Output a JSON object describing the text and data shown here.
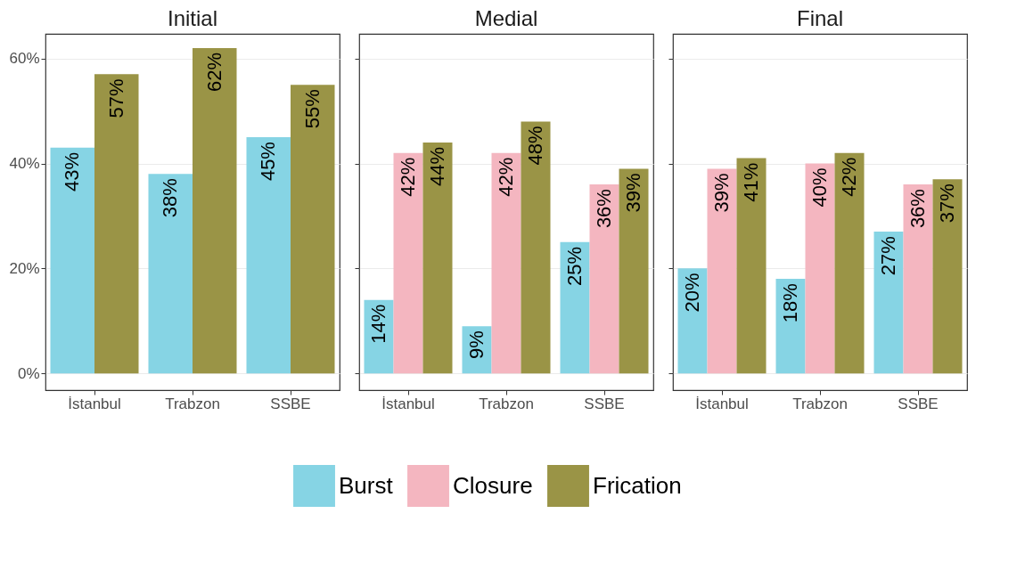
{
  "chart_data": [
    {
      "type": "bar",
      "title": "Initial",
      "categories": [
        "İstanbul",
        "Trabzon",
        "SSBE"
      ],
      "series": [
        {
          "name": "Burst",
          "color": "#86d4e4",
          "values": [
            43,
            38,
            45
          ],
          "value_labels": [
            "43%",
            "38%",
            "45%"
          ]
        },
        {
          "name": "Frication",
          "color": "#9a9446",
          "values": [
            57,
            62,
            55
          ],
          "value_labels": [
            "57%",
            "62%",
            "55%"
          ]
        }
      ],
      "ylim": [
        -3.2,
        64.7
      ],
      "yticks": [
        {
          "value": 0,
          "label": "0%"
        },
        {
          "value": 20,
          "label": "20%"
        },
        {
          "value": 40,
          "label": "40%"
        },
        {
          "value": 60,
          "label": "60%"
        }
      ],
      "grid": "y",
      "legend": "bottom"
    },
    {
      "type": "bar",
      "title": "Medial",
      "categories": [
        "İstanbul",
        "Trabzon",
        "SSBE"
      ],
      "series": [
        {
          "name": "Burst",
          "color": "#86d4e4",
          "values": [
            14,
            9,
            25
          ],
          "value_labels": [
            "14%",
            "9%",
            "25%"
          ]
        },
        {
          "name": "Closure",
          "color": "#f4b6c0",
          "values": [
            42,
            42,
            36
          ],
          "value_labels": [
            "42%",
            "42%",
            "36%"
          ]
        },
        {
          "name": "Frication",
          "color": "#9a9446",
          "values": [
            44,
            48,
            39
          ],
          "value_labels": [
            "44%",
            "48%",
            "39%"
          ]
        }
      ],
      "ylim": [
        -3.2,
        64.7
      ],
      "yticks": [
        {
          "value": 0,
          "label": null
        },
        {
          "value": 20,
          "label": null
        },
        {
          "value": 40,
          "label": null
        },
        {
          "value": 60,
          "label": null
        }
      ],
      "grid": "y",
      "legend": "bottom",
      "tick_labels": "x"
    },
    {
      "type": "bar",
      "title": "Final",
      "categories": [
        "İstanbul",
        "Trabzon",
        "SSBE"
      ],
      "series": [
        {
          "name": "Burst",
          "color": "#86d4e4",
          "values": [
            20,
            18,
            27
          ],
          "value_labels": [
            "20%",
            "18%",
            "27%"
          ]
        },
        {
          "name": "Closure",
          "color": "#f4b6c0",
          "values": [
            39,
            40,
            36
          ],
          "value_labels": [
            "39%",
            "40%",
            "36%"
          ]
        },
        {
          "name": "Frication",
          "color": "#9a9446",
          "values": [
            41,
            42,
            37
          ],
          "value_labels": [
            "41%",
            "42%",
            "37%"
          ]
        }
      ],
      "ylim": [
        -3.2,
        64.7
      ],
      "yticks": [
        {
          "value": 0,
          "label": null
        },
        {
          "value": 20,
          "label": null
        },
        {
          "value": 40,
          "label": null
        },
        {
          "value": 60,
          "label": null
        }
      ],
      "grid": "y",
      "legend": "bottom",
      "tick_labels": "x"
    }
  ]
}
